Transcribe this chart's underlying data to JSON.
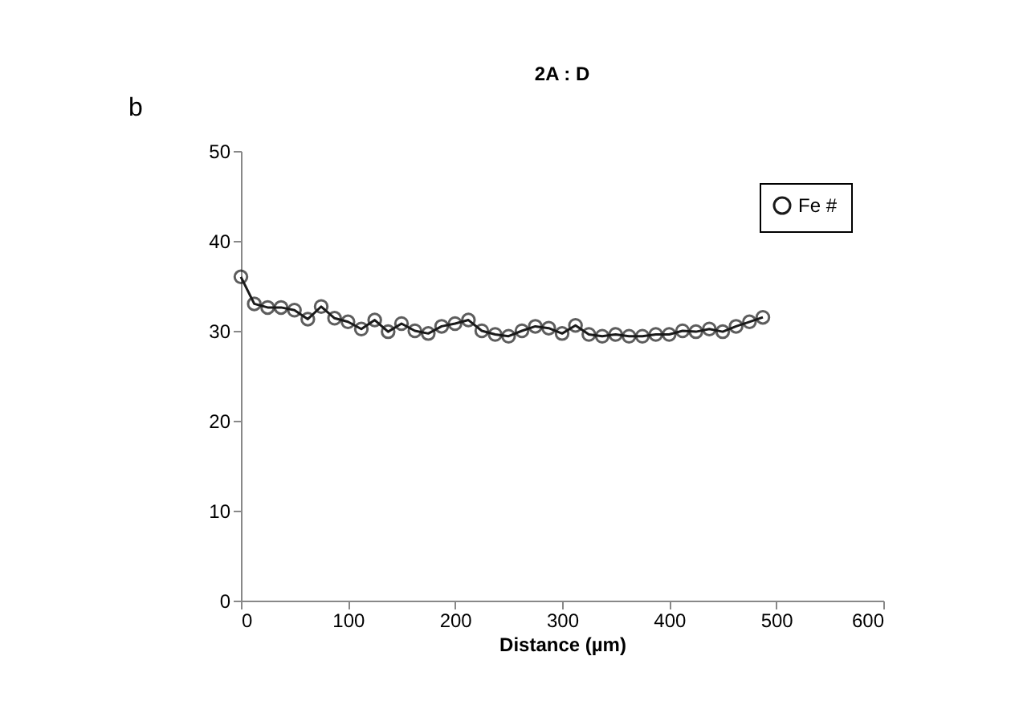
{
  "chart_data": {
    "type": "line",
    "title": "2A : D",
    "xlabel": "Distance (µm)",
    "annotations": [
      "b"
    ],
    "x": [
      0,
      12.5,
      25,
      37.5,
      50,
      62.5,
      75,
      87.5,
      100,
      112.5,
      125,
      137.5,
      150,
      162.5,
      175,
      187.5,
      200,
      212.5,
      225,
      237.5,
      250,
      262.5,
      275,
      287.5,
      300,
      312.5,
      325,
      337.5,
      350,
      362.5,
      375,
      387.5,
      400,
      412.5,
      425,
      437.5,
      450,
      462.5,
      475,
      487.5
    ],
    "series": [
      {
        "name": "Fe #",
        "color": "#1a1a1a",
        "values": [
          36.0,
          33.0,
          32.6,
          32.6,
          32.3,
          31.3,
          32.7,
          31.4,
          31.0,
          30.2,
          31.2,
          29.9,
          30.8,
          30.0,
          29.7,
          30.5,
          30.8,
          31.2,
          30.0,
          29.6,
          29.4,
          30.0,
          30.5,
          30.3,
          29.7,
          30.6,
          29.6,
          29.4,
          29.6,
          29.4,
          29.4,
          29.6,
          29.6,
          30.0,
          29.9,
          30.2,
          29.9,
          30.5,
          31.0,
          31.5
        ]
      }
    ],
    "xlim": [
      0,
      600
    ],
    "xticks": [
      0,
      100,
      200,
      300,
      400,
      500,
      600
    ],
    "ylim": [
      0,
      50
    ],
    "yticks": [
      0,
      10,
      20,
      30,
      40,
      50
    ],
    "grid": false,
    "legend": "top right",
    "marker": "circle",
    "line_style": "solid"
  }
}
